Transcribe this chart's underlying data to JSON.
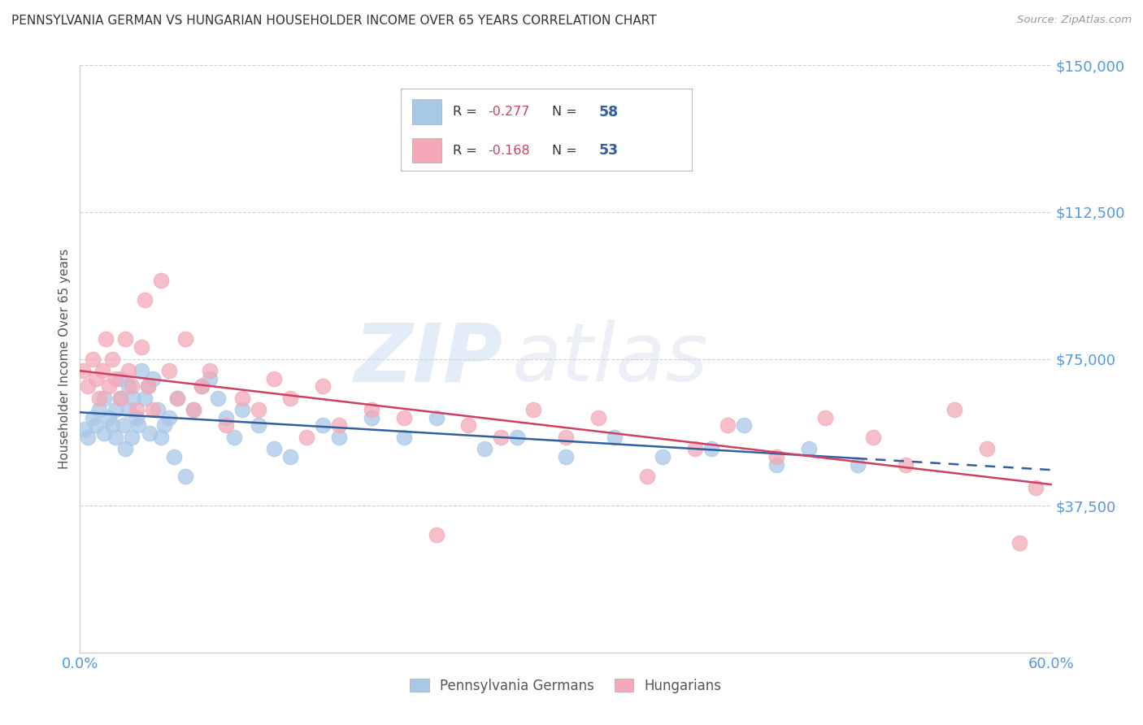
{
  "title": "PENNSYLVANIA GERMAN VS HUNGARIAN HOUSEHOLDER INCOME OVER 65 YEARS CORRELATION CHART",
  "source": "Source: ZipAtlas.com",
  "ylabel": "Householder Income Over 65 years",
  "xlim": [
    0.0,
    0.6
  ],
  "ylim": [
    0,
    150000
  ],
  "xticks": [
    0.0,
    0.1,
    0.2,
    0.3,
    0.4,
    0.5,
    0.6
  ],
  "xticklabels": [
    "0.0%",
    "",
    "",
    "",
    "",
    "",
    "60.0%"
  ],
  "yticks": [
    0,
    37500,
    75000,
    112500,
    150000
  ],
  "yticklabels": [
    "",
    "$37,500",
    "$75,000",
    "$112,500",
    "$150,000"
  ],
  "watermark_zip": "ZIP",
  "watermark_atlas": "atlas",
  "legend_label1": "Pennsylvania Germans",
  "legend_label2": "Hungarians",
  "R1": -0.277,
  "N1": 58,
  "R2": -0.168,
  "N2": 53,
  "blue_color": "#A8C8E8",
  "pink_color": "#F4A8B8",
  "blue_line_color": "#3060A0",
  "pink_line_color": "#D04060",
  "background_color": "#ffffff",
  "grid_color": "#cccccc",
  "title_color": "#333333",
  "ylabel_color": "#555555",
  "yticklabel_color": "#5599DD",
  "xticklabel_color": "#5599DD",
  "pg_x": [
    0.003,
    0.005,
    0.008,
    0.01,
    0.012,
    0.015,
    0.015,
    0.018,
    0.02,
    0.022,
    0.022,
    0.025,
    0.025,
    0.027,
    0.028,
    0.03,
    0.03,
    0.032,
    0.033,
    0.035,
    0.036,
    0.038,
    0.04,
    0.042,
    0.043,
    0.045,
    0.048,
    0.05,
    0.052,
    0.055,
    0.058,
    0.06,
    0.065,
    0.07,
    0.075,
    0.08,
    0.085,
    0.09,
    0.095,
    0.1,
    0.11,
    0.12,
    0.13,
    0.15,
    0.16,
    0.18,
    0.2,
    0.22,
    0.25,
    0.27,
    0.3,
    0.33,
    0.36,
    0.39,
    0.41,
    0.43,
    0.45,
    0.48
  ],
  "pg_y": [
    57000,
    55000,
    60000,
    58000,
    62000,
    65000,
    56000,
    60000,
    58000,
    55000,
    62000,
    70000,
    65000,
    58000,
    52000,
    68000,
    62000,
    55000,
    65000,
    60000,
    58000,
    72000,
    65000,
    68000,
    56000,
    70000,
    62000,
    55000,
    58000,
    60000,
    50000,
    65000,
    45000,
    62000,
    68000,
    70000,
    65000,
    60000,
    55000,
    62000,
    58000,
    52000,
    50000,
    58000,
    55000,
    60000,
    55000,
    60000,
    52000,
    55000,
    50000,
    55000,
    50000,
    52000,
    58000,
    48000,
    52000,
    48000
  ],
  "hu_x": [
    0.002,
    0.005,
    0.008,
    0.01,
    0.012,
    0.014,
    0.016,
    0.018,
    0.02,
    0.022,
    0.025,
    0.028,
    0.03,
    0.032,
    0.035,
    0.038,
    0.04,
    0.042,
    0.045,
    0.05,
    0.055,
    0.06,
    0.065,
    0.07,
    0.075,
    0.08,
    0.09,
    0.1,
    0.11,
    0.12,
    0.13,
    0.14,
    0.15,
    0.16,
    0.18,
    0.2,
    0.22,
    0.24,
    0.26,
    0.28,
    0.3,
    0.32,
    0.35,
    0.38,
    0.4,
    0.43,
    0.46,
    0.49,
    0.51,
    0.54,
    0.56,
    0.58,
    0.59
  ],
  "hu_y": [
    72000,
    68000,
    75000,
    70000,
    65000,
    72000,
    80000,
    68000,
    75000,
    70000,
    65000,
    80000,
    72000,
    68000,
    62000,
    78000,
    90000,
    68000,
    62000,
    95000,
    72000,
    65000,
    80000,
    62000,
    68000,
    72000,
    58000,
    65000,
    62000,
    70000,
    65000,
    55000,
    68000,
    58000,
    62000,
    60000,
    30000,
    58000,
    55000,
    62000,
    55000,
    60000,
    45000,
    52000,
    58000,
    50000,
    60000,
    55000,
    48000,
    62000,
    52000,
    28000,
    42000
  ],
  "pg_line_x_solid_end": 0.48,
  "pg_line_x_end": 0.6
}
